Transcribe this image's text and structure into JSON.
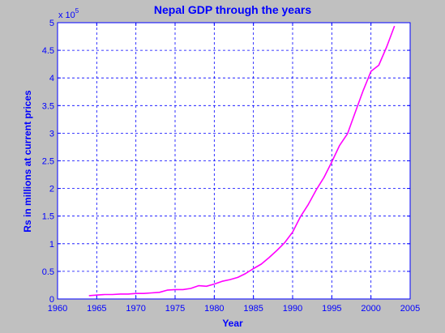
{
  "chart_data": {
    "type": "line",
    "title": "Nepal GDP through the years",
    "xlabel": "Year",
    "ylabel": "Rs in millions at current prices",
    "y_exponent_label": {
      "base": "x 10",
      "exponent": "5"
    },
    "xlim": [
      1960,
      2005
    ],
    "ylim": [
      0,
      5
    ],
    "y_scale_factor": 100000,
    "grid": true,
    "x_ticks": [
      "1960",
      "1965",
      "1970",
      "1975",
      "1980",
      "1985",
      "1990",
      "1995",
      "2000",
      "2005"
    ],
    "y_ticks": [
      "0",
      "0.5",
      "1",
      "1.5",
      "2",
      "2.5",
      "3",
      "3.5",
      "4",
      "4.5",
      "5"
    ],
    "series": [
      {
        "color": "#ff00ff",
        "x": [
          1964,
          1965,
          1966,
          1967,
          1968,
          1969,
          1970,
          1971,
          1972,
          1973,
          1974,
          1975,
          1976,
          1977,
          1978,
          1979,
          1980,
          1981,
          1982,
          1983,
          1984,
          1985,
          1986,
          1987,
          1988,
          1989,
          1990,
          1991,
          1992,
          1993,
          1994,
          1995,
          1996,
          1997,
          1998,
          1999,
          2000,
          2001,
          2002,
          2003
        ],
        "y": [
          0.06,
          0.07,
          0.08,
          0.08,
          0.09,
          0.09,
          0.1,
          0.1,
          0.11,
          0.12,
          0.16,
          0.17,
          0.17,
          0.19,
          0.24,
          0.23,
          0.27,
          0.32,
          0.35,
          0.39,
          0.46,
          0.55,
          0.63,
          0.75,
          0.88,
          1.02,
          1.21,
          1.49,
          1.71,
          1.97,
          2.2,
          2.48,
          2.78,
          2.99,
          3.38,
          3.77,
          4.12,
          4.23,
          4.56,
          4.94
        ]
      }
    ]
  },
  "colors": {
    "figure_background": "#c0c0c0",
    "axes_background": "#ffffff",
    "axis_and_text": "#0000ff",
    "line": "#ff00ff"
  }
}
